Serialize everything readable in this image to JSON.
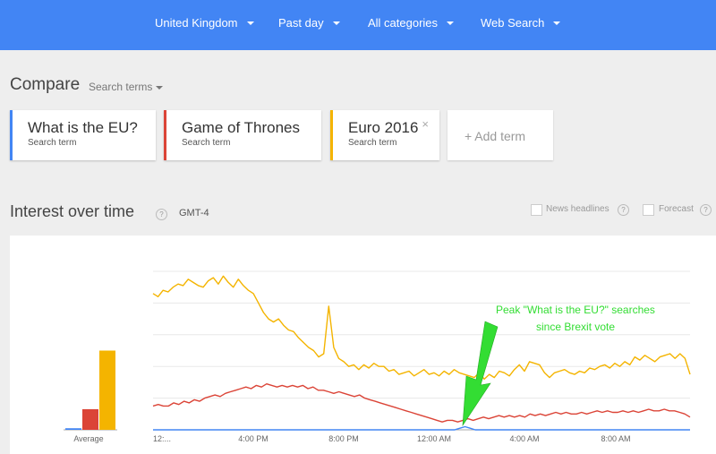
{
  "filters": [
    {
      "label": "United Kingdom"
    },
    {
      "label": "Past day"
    },
    {
      "label": "All categories"
    },
    {
      "label": "Web Search"
    }
  ],
  "compare": {
    "title": "Compare",
    "search_terms_label": "Search terms",
    "terms": [
      {
        "term": "What is the EU?",
        "sub": "Search term",
        "color": "#4285f4"
      },
      {
        "term": "Game of Thrones",
        "sub": "Search term",
        "color": "#db4437"
      },
      {
        "term": "Euro 2016",
        "sub": "Search term",
        "color": "#f4b400",
        "close": "×"
      }
    ],
    "add_label": "+ Add term"
  },
  "interest": {
    "title": "Interest over time",
    "help": "?",
    "timezone": "GMT-4",
    "news_label": "News headlines",
    "forecast_label": "Forecast"
  },
  "chart_data": {
    "type": "line",
    "x_ticks": [
      "12:...",
      "4:00 PM",
      "8:00 PM",
      "12:00 AM",
      "4:00 AM",
      "8:00 AM"
    ],
    "averages_label": "Average",
    "averages": [
      {
        "name": "What is the EU?",
        "value": 1,
        "color": "#4285f4"
      },
      {
        "name": "Game of Thrones",
        "value": 13,
        "color": "#db4437"
      },
      {
        "name": "Euro 2016",
        "value": 50,
        "color": "#f4b400"
      }
    ],
    "ylim": [
      0,
      100
    ],
    "series": [
      {
        "color": "#f4b400",
        "values": [
          86,
          84,
          88,
          87,
          90,
          92,
          91,
          95,
          93,
          91,
          90,
          94,
          96,
          92,
          97,
          93,
          90,
          95,
          91,
          88,
          86,
          80,
          74,
          70,
          68,
          70,
          66,
          63,
          62,
          58,
          55,
          52,
          50,
          46,
          48,
          78,
          52,
          45,
          43,
          40,
          41,
          38,
          41,
          39,
          42,
          40,
          40,
          37,
          38,
          35,
          36,
          37,
          34,
          36,
          38,
          35,
          36,
          34,
          37,
          35,
          38,
          36,
          35,
          34,
          33,
          36,
          32,
          35,
          33,
          37,
          36,
          34,
          38,
          41,
          37,
          43,
          42,
          41,
          36,
          33,
          36,
          37,
          38,
          36,
          35,
          37,
          36,
          39,
          38,
          40,
          41,
          39,
          42,
          40,
          43,
          41,
          46,
          44,
          47,
          45,
          43,
          46,
          47,
          48,
          45,
          48,
          45,
          35
        ]
      },
      {
        "color": "#db4437",
        "values": [
          15,
          16,
          15,
          15,
          17,
          16,
          18,
          17,
          19,
          18,
          20,
          21,
          22,
          21,
          23,
          24,
          25,
          26,
          27,
          26,
          28,
          27,
          29,
          28,
          27,
          28,
          27,
          28,
          27,
          28,
          26,
          27,
          25,
          25,
          24,
          23,
          24,
          23,
          22,
          21,
          22,
          20,
          19,
          18,
          17,
          16,
          15,
          14,
          13,
          12,
          11,
          10,
          9,
          8,
          7,
          6,
          5,
          6,
          6,
          5,
          6,
          7,
          6,
          7,
          8,
          7,
          8,
          9,
          8,
          9,
          8,
          9,
          8,
          10,
          9,
          10,
          9,
          10,
          11,
          10,
          11,
          10,
          10,
          11,
          10,
          11,
          12,
          11,
          12,
          11,
          11,
          12,
          11,
          12,
          11,
          12,
          13,
          12,
          12,
          13,
          12,
          12,
          11,
          10,
          8
        ]
      },
      {
        "color": "#4285f4",
        "values": [
          0,
          0,
          0,
          0,
          0,
          0,
          0,
          0,
          0,
          0,
          0,
          0,
          0,
          0,
          0,
          0,
          0,
          0,
          0,
          0,
          0,
          0,
          0,
          0,
          0,
          0,
          0,
          0,
          0,
          0,
          0,
          0,
          0,
          0,
          0,
          0,
          0,
          0,
          0,
          0,
          0,
          0,
          0,
          0,
          0,
          0,
          0,
          0,
          0,
          0,
          0,
          0,
          0,
          0,
          0,
          0,
          0,
          0,
          0,
          0,
          1,
          2,
          1,
          0,
          0,
          0,
          0,
          0,
          0,
          0,
          0,
          0,
          0,
          0,
          0,
          0,
          0,
          0,
          0,
          0,
          0,
          0,
          0,
          0,
          0,
          0,
          0,
          0,
          0,
          0,
          0,
          0,
          0,
          0,
          0,
          0,
          0,
          0,
          0,
          0,
          0,
          0,
          0,
          0,
          0,
          0
        ]
      }
    ],
    "annotation": {
      "line1": "Peak \"What is the EU?\" searches",
      "line2": "since Brexit vote",
      "color": "#33dd33"
    }
  }
}
